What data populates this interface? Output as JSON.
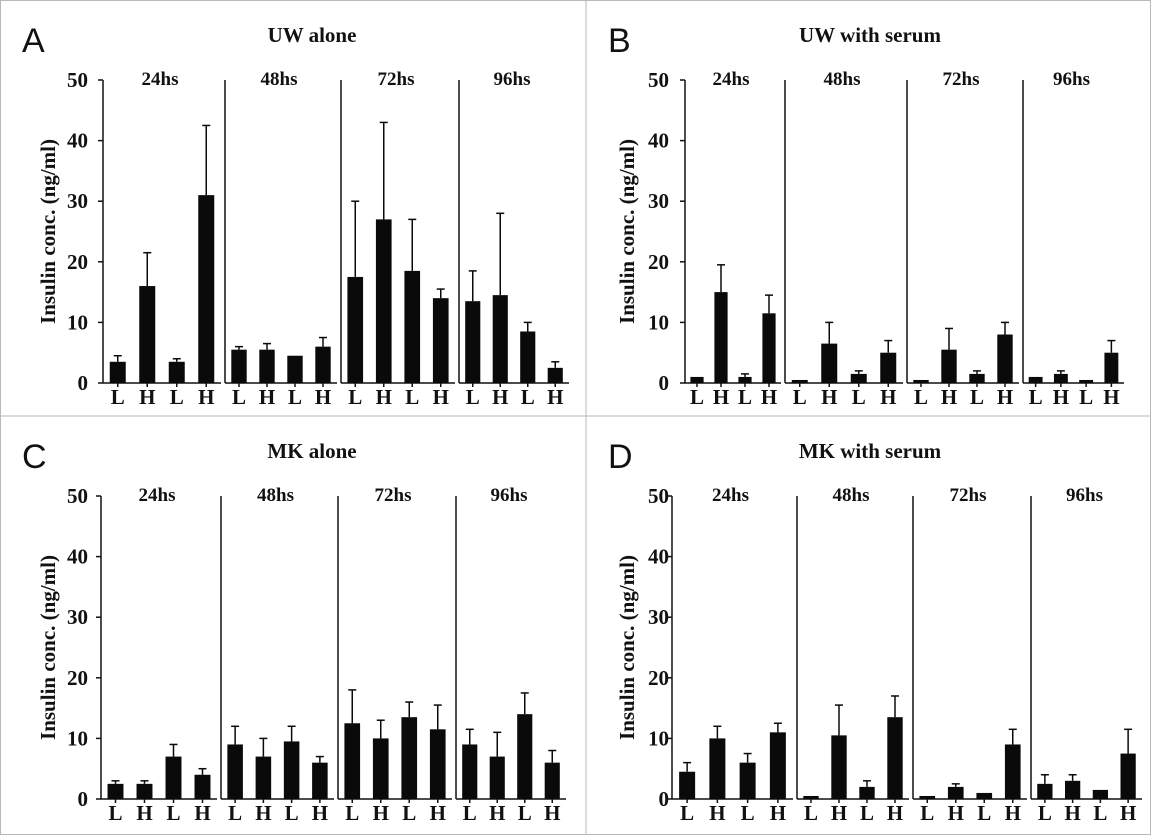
{
  "figure": {
    "y_axis_label": "Insulin conc. (ng/ml)",
    "y_ticks": [
      "0",
      "10",
      "20",
      "30",
      "40",
      "50"
    ],
    "colors": {
      "bar": "#0a0a0a",
      "axis": "#111111",
      "panel_border": "#b8b8b8"
    }
  },
  "chart_data": [
    {
      "type": "bar",
      "panel": "A",
      "title": "UW alone",
      "ylabel": "Insulin conc. (ng/ml)",
      "ylim": [
        0,
        50
      ],
      "groups": [
        "24hs",
        "48hs",
        "72hs",
        "96hs"
      ],
      "categories": [
        "L",
        "H",
        "L",
        "H"
      ],
      "values": [
        [
          3.5,
          16,
          3.5,
          31
        ],
        [
          5.5,
          5.5,
          4.5,
          6
        ],
        [
          17.5,
          27,
          18.5,
          14
        ],
        [
          13.5,
          14.5,
          8.5,
          2.5
        ]
      ],
      "errors": [
        [
          1,
          5.5,
          0.5,
          11.5
        ],
        [
          0.5,
          1,
          0,
          1.5
        ],
        [
          12.5,
          16,
          8.5,
          1.5
        ],
        [
          5,
          13.5,
          1.5,
          1
        ]
      ]
    },
    {
      "type": "bar",
      "panel": "B",
      "title": "UW with serum",
      "ylabel": "Insulin conc. (ng/ml)",
      "ylim": [
        0,
        50
      ],
      "groups": [
        "24hs",
        "48hs",
        "72hs",
        "96hs"
      ],
      "categories": [
        "L",
        "H",
        "L",
        "H"
      ],
      "values": [
        [
          1,
          15,
          1,
          11.5
        ],
        [
          0.5,
          6.5,
          1.5,
          5
        ],
        [
          0.5,
          5.5,
          1.5,
          8
        ],
        [
          1,
          1.5,
          0.5,
          5
        ]
      ],
      "errors": [
        [
          0,
          4.5,
          0.5,
          3
        ],
        [
          0,
          3.5,
          0.5,
          2
        ],
        [
          0,
          3.5,
          0.5,
          2
        ],
        [
          0,
          0.5,
          0,
          2
        ]
      ]
    },
    {
      "type": "bar",
      "panel": "C",
      "title": "MK alone",
      "ylabel": "Insulin conc. (ng/ml)",
      "ylim": [
        0,
        50
      ],
      "groups": [
        "24hs",
        "48hs",
        "72hs",
        "96hs"
      ],
      "categories": [
        "L",
        "H",
        "L",
        "H"
      ],
      "values": [
        [
          2.5,
          2.5,
          7,
          4
        ],
        [
          9,
          7,
          9.5,
          6
        ],
        [
          12.5,
          10,
          13.5,
          11.5
        ],
        [
          9,
          7,
          14,
          6
        ]
      ],
      "errors": [
        [
          0.5,
          0.5,
          2,
          1
        ],
        [
          3,
          3,
          2.5,
          1
        ],
        [
          5.5,
          3,
          2.5,
          4
        ],
        [
          2.5,
          4,
          3.5,
          2
        ]
      ]
    },
    {
      "type": "bar",
      "panel": "D",
      "title": "MK with serum",
      "ylabel": "Insulin conc. (ng/ml)",
      "ylim": [
        0,
        50
      ],
      "groups": [
        "24hs",
        "48hs",
        "72hs",
        "96hs"
      ],
      "categories": [
        "L",
        "H",
        "L",
        "H"
      ],
      "values": [
        [
          4.5,
          10,
          6,
          11
        ],
        [
          0.5,
          10.5,
          2,
          13.5
        ],
        [
          0.5,
          2,
          1,
          9
        ],
        [
          2.5,
          3,
          1.5,
          7.5
        ]
      ],
      "errors": [
        [
          1.5,
          2,
          1.5,
          1.5
        ],
        [
          0,
          5,
          1,
          3.5
        ],
        [
          0,
          0.5,
          0,
          2.5
        ],
        [
          1.5,
          1,
          0,
          4
        ]
      ]
    }
  ]
}
